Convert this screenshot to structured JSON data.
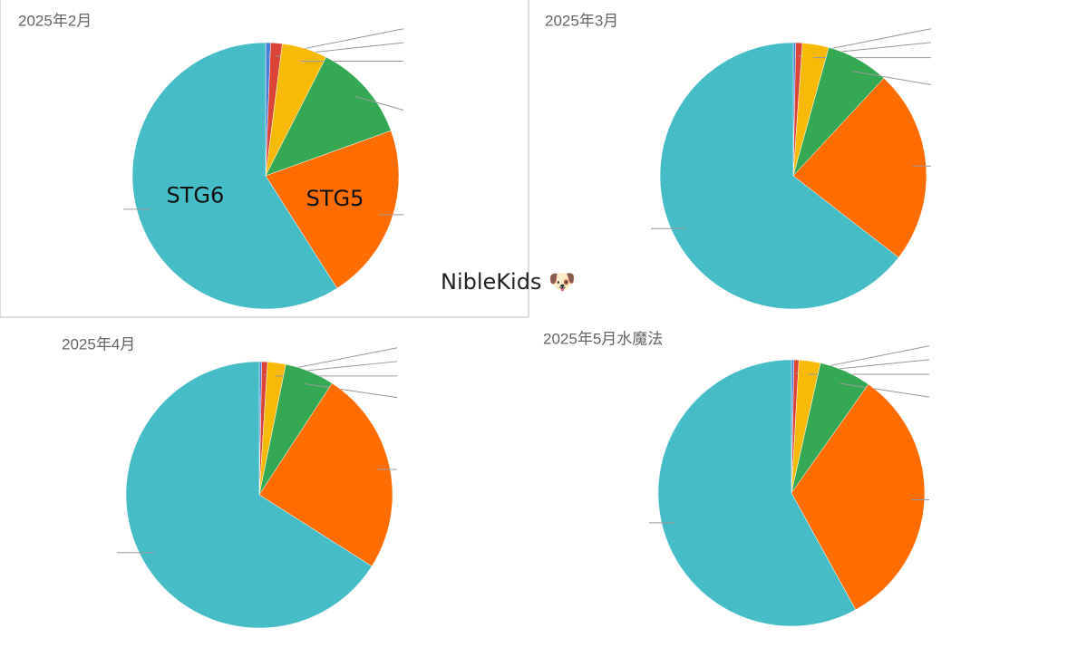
{
  "chart_data": [
    {
      "type": "pie",
      "title": "2025年2月",
      "categories": [
        null,
        null,
        null,
        null,
        "STG5",
        "STG6"
      ],
      "values": [
        0.6,
        1.4,
        5.5,
        12,
        21.5,
        59
      ],
      "colors": [
        "#4a7fd6",
        "#db4437",
        "#f7bb07",
        "#34a853",
        "#ff6d01",
        "#46bdc6"
      ]
    },
    {
      "type": "pie",
      "title": "2025年3月",
      "categories": [
        null,
        null,
        null,
        null,
        null,
        null
      ],
      "values": [
        0.3,
        0.8,
        3.2,
        7.6,
        23.6,
        64.5
      ],
      "colors": [
        "#4a7fd6",
        "#db4437",
        "#f7bb07",
        "#34a853",
        "#ff6d01",
        "#46bdc6"
      ]
    },
    {
      "type": "pie",
      "title": "2025年4月",
      "categories": [
        null,
        null,
        null,
        null,
        null,
        null
      ],
      "values": [
        0.3,
        0.7,
        2.2,
        6,
        24.8,
        66
      ],
      "colors": [
        "#4a7fd6",
        "#db4437",
        "#f7bb07",
        "#34a853",
        "#ff6d01",
        "#46bdc6"
      ]
    },
    {
      "type": "pie",
      "title": "2025年5月水魔法",
      "categories": [
        null,
        null,
        null,
        null,
        null,
        null
      ],
      "values": [
        0.3,
        0.6,
        2.6,
        6.3,
        32.2,
        58
      ],
      "colors": [
        "#4a7fd6",
        "#db4437",
        "#f7bb07",
        "#34a853",
        "#ff6d01",
        "#46bdc6"
      ]
    }
  ],
  "watermark": "NibleKids 🐶"
}
